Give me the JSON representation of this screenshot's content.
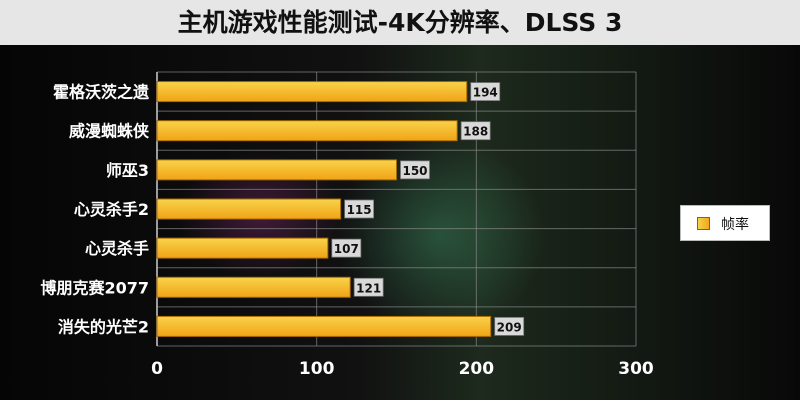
{
  "chart_data": {
    "type": "bar",
    "orientation": "horizontal",
    "title": "主机游戏性能测试-4K分辨率、DLSS 3",
    "categories": [
      "霍格沃茨之遗",
      "威漫蜘蛛侠",
      "师巫3",
      "心灵杀手2",
      "心灵杀手",
      "博朋克赛2077",
      "消失的光芒2"
    ],
    "series": [
      {
        "name": "帧率",
        "values": [
          194,
          188,
          150,
          115,
          107,
          121,
          209
        ]
      }
    ],
    "xlim": [
      0,
      300
    ],
    "xticks": [
      0,
      100,
      200,
      300
    ],
    "grid": true,
    "legend_position": "right",
    "colors": {
      "bar_light": "#f8d34a",
      "bar_dark": "#f1a316",
      "grid": "#888888",
      "axis_text": "#ffffff"
    }
  }
}
